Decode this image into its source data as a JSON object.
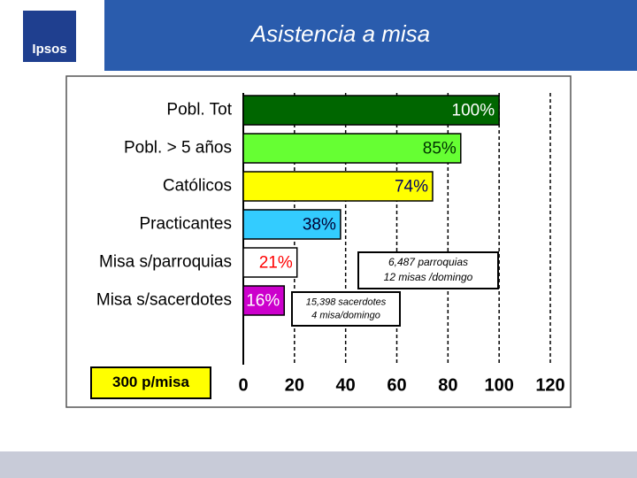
{
  "header": {
    "logo": "Ipsos"
  },
  "chart_data": {
    "type": "bar",
    "orientation": "horizontal",
    "title": "Asistencia a misa",
    "categories": [
      "Pobl. Tot",
      "Pobl. > 5 años",
      "Católicos",
      "Practicantes",
      "Misa s/parroquias",
      "Misa s/sacerdotes"
    ],
    "values": [
      100,
      85,
      74,
      38,
      21,
      16
    ],
    "value_labels": [
      "100%",
      "85%",
      "74%",
      "38%",
      "21%",
      "16%"
    ],
    "colors": [
      "#006600",
      "#66ff33",
      "#ffff00",
      "#33ccff",
      "#ffffff",
      "#cc00cc"
    ],
    "label_colors": [
      "#ffffff",
      "#003300",
      "#000066",
      "#000033",
      "#ff0000",
      "#ffffff"
    ],
    "xlim": [
      0,
      120
    ],
    "xticks": [
      0,
      20,
      40,
      60,
      80,
      100,
      120
    ],
    "grid": true,
    "annotations": [
      [
        "6,487 parroquias",
        "12 misas /domingo"
      ],
      [
        "15,398 sacerdotes",
        "4 misa/domingo"
      ],
      [
        "300 p/misa"
      ]
    ]
  }
}
